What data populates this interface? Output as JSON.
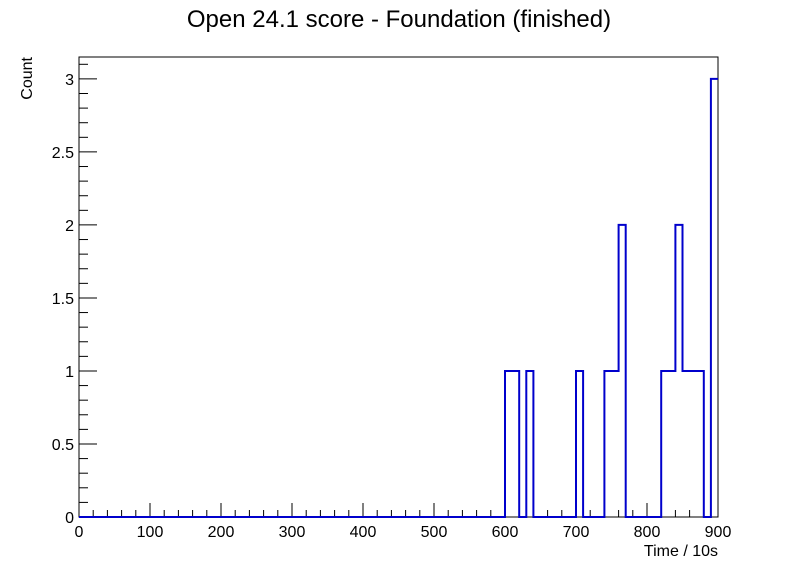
{
  "chart_data": {
    "type": "histogram",
    "title": "Open 24.1 score - Foundation (finished)",
    "xlabel": "Time / 10s",
    "ylabel": "Count",
    "xlim": [
      0,
      900
    ],
    "ylim": [
      0,
      3.15
    ],
    "bin_width": 10,
    "x_ticks": [
      "0",
      "100",
      "200",
      "300",
      "400",
      "500",
      "600",
      "700",
      "800",
      "900"
    ],
    "y_ticks": [
      "0",
      "0.5",
      "1",
      "1.5",
      "2",
      "2.5",
      "3"
    ],
    "bins": [
      {
        "x": 600,
        "count": 1
      },
      {
        "x": 610,
        "count": 1
      },
      {
        "x": 630,
        "count": 1
      },
      {
        "x": 700,
        "count": 1
      },
      {
        "x": 740,
        "count": 1
      },
      {
        "x": 750,
        "count": 1
      },
      {
        "x": 760,
        "count": 2
      },
      {
        "x": 820,
        "count": 1
      },
      {
        "x": 830,
        "count": 1
      },
      {
        "x": 840,
        "count": 2
      },
      {
        "x": 850,
        "count": 1
      },
      {
        "x": 860,
        "count": 1
      },
      {
        "x": 870,
        "count": 1
      },
      {
        "x": 890,
        "count": 3
      }
    ],
    "line_color": "#0000cc",
    "grid": false,
    "legend": "none"
  }
}
